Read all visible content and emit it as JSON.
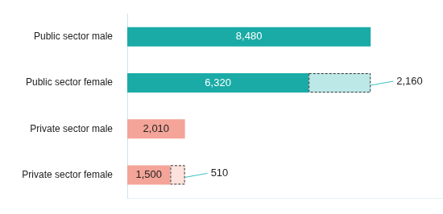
{
  "chart_data": {
    "type": "bar",
    "orientation": "horizontal",
    "stacked": true,
    "data_labels": true,
    "tick_labels": "y",
    "grid": false,
    "categories": [
      "Public sector male",
      "Public sector female",
      "Private sector male",
      "Private sector female"
    ],
    "xlim": [
      0,
      11000
    ],
    "series": [
      {
        "colors": [
          "#1aaba6",
          "#1aaba6",
          "#f4a498",
          "#f4a498"
        ],
        "values": [
          8480,
          6320,
          2010,
          1500
        ],
        "value_labels": [
          "8,480",
          "6,320",
          "2,010",
          "1,500"
        ]
      },
      {
        "colors": [
          "#bde8e8",
          "#bde8e8",
          "#fde1dc",
          "#fde1dc"
        ],
        "line_style": "dashed",
        "values": [
          null,
          2160,
          null,
          510
        ],
        "value_labels": [
          null,
          "2,160",
          null,
          "510"
        ]
      }
    ]
  }
}
